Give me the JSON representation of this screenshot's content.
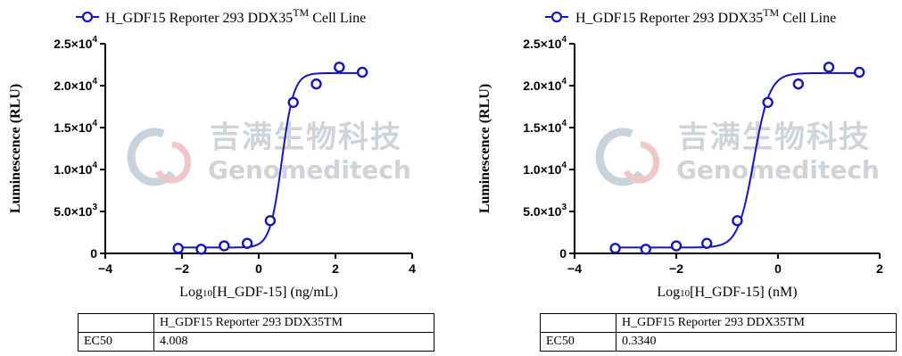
{
  "chart_data": [
    {
      "type": "scatter",
      "legend": "H_GDF15 Reporter 293 DDX35",
      "legend_sup": "TM",
      "legend_suffix": " Cell Line",
      "ylabel": "Luminescence (RLU)",
      "xlabel": "Log10[H_GDF-15] (ng/mL)",
      "xlabel_base": "Log",
      "xlabel_sub": "10",
      "xlabel_rest": "[H_GDF-15] (ng/mL)",
      "xlim": [
        -4,
        4
      ],
      "ylim": [
        0,
        25000
      ],
      "xticks": [
        -4,
        -2,
        0,
        2,
        4
      ],
      "yticks": [
        {
          "value": 0,
          "mant": "0",
          "exp": ""
        },
        {
          "value": 5000,
          "mant": "5.0×10",
          "exp": "3"
        },
        {
          "value": 10000,
          "mant": "1.0×10",
          "exp": "4"
        },
        {
          "value": 15000,
          "mant": "1.5×10",
          "exp": "4"
        },
        {
          "value": 20000,
          "mant": "2.0×10",
          "exp": "4"
        },
        {
          "value": 25000,
          "mant": "2.5×10",
          "exp": "4"
        }
      ],
      "points": [
        {
          "x": -2.1,
          "y": 600
        },
        {
          "x": -1.5,
          "y": 500
        },
        {
          "x": -0.9,
          "y": 900
        },
        {
          "x": -0.3,
          "y": 1200
        },
        {
          "x": 0.3,
          "y": 3900
        },
        {
          "x": 0.9,
          "y": 18000
        },
        {
          "x": 1.5,
          "y": 20200
        },
        {
          "x": 2.1,
          "y": 22200
        },
        {
          "x": 2.7,
          "y": 21600
        }
      ],
      "fit": {
        "bottom": 700,
        "top": 21500,
        "logEC50": 0.603,
        "hill": 2.8
      },
      "color": "#1515c0",
      "table": {
        "header": "H_GDF15 Reporter 293 DDX35TM",
        "row_label": "EC50",
        "row_value": "4.008"
      },
      "watermark": {
        "cn": "吉满生物科技",
        "en": "Genomeditech"
      }
    },
    {
      "type": "scatter",
      "legend": "H_GDF15 Reporter 293 DDX35",
      "legend_sup": "TM",
      "legend_suffix": " Cell Line",
      "ylabel": "Luminescence (RLU)",
      "xlabel": "Log10[H_GDF-15] (nM)",
      "xlabel_base": "Log",
      "xlabel_sub": "10",
      "xlabel_rest": "[H_GDF-15] (nM)",
      "xlim": [
        -4,
        2
      ],
      "ylim": [
        0,
        25000
      ],
      "xticks": [
        -4,
        -2,
        0,
        2
      ],
      "yticks": [
        {
          "value": 0,
          "mant": "0",
          "exp": ""
        },
        {
          "value": 5000,
          "mant": "5.0×10",
          "exp": "3"
        },
        {
          "value": 10000,
          "mant": "1.0×10",
          "exp": "4"
        },
        {
          "value": 15000,
          "mant": "1.5×10",
          "exp": "4"
        },
        {
          "value": 20000,
          "mant": "2.0×10",
          "exp": "4"
        },
        {
          "value": 25000,
          "mant": "2.5×10",
          "exp": "4"
        }
      ],
      "points": [
        {
          "x": -3.2,
          "y": 600
        },
        {
          "x": -2.6,
          "y": 500
        },
        {
          "x": -2.0,
          "y": 900
        },
        {
          "x": -1.4,
          "y": 1200
        },
        {
          "x": -0.8,
          "y": 3900
        },
        {
          "x": -0.2,
          "y": 18000
        },
        {
          "x": 0.4,
          "y": 20200
        },
        {
          "x": 1.0,
          "y": 22200
        },
        {
          "x": 1.6,
          "y": 21600
        }
      ],
      "fit": {
        "bottom": 700,
        "top": 21500,
        "logEC50": -0.476,
        "hill": 2.8
      },
      "color": "#1515c0",
      "table": {
        "header": "H_GDF15 Reporter 293 DDX35TM",
        "row_label": "EC50",
        "row_value": "0.3340"
      },
      "watermark": {
        "cn": "吉满生物科技",
        "en": "Genomeditech"
      }
    }
  ]
}
